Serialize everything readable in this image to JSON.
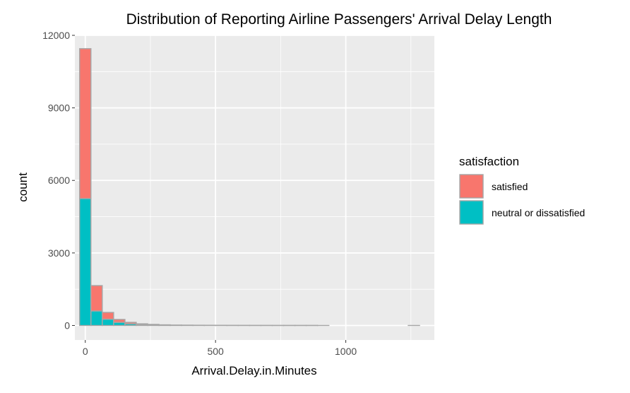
{
  "chart_data": {
    "type": "bar",
    "stacked": true,
    "histogram": true,
    "title": "Distribution of Reporting Airline Passengers' Arrival Delay Length",
    "xlabel": "Arrival.Delay.in.Minutes",
    "ylabel": "count",
    "xlim": [
      -40,
      1340
    ],
    "ylim": [
      -600,
      12000
    ],
    "x_ticks": [
      0,
      500,
      1000
    ],
    "y_ticks": [
      0,
      3000,
      6000,
      9000,
      12000
    ],
    "bin_width": 43.5,
    "bin_starts": [
      -21.75,
      21.75,
      65.25,
      108.75,
      152.25,
      195.75,
      239.25,
      282.75,
      326.25,
      369.75,
      413.25,
      456.75,
      500.25,
      543.75,
      587.25,
      630.75,
      674.25,
      717.75,
      761.25,
      804.75,
      848.25,
      891.75,
      935.25,
      978.75,
      1022.25,
      1065.75,
      1109.25,
      1152.75,
      1196.25,
      1239.75
    ],
    "series": [
      {
        "name": "neutral or dissatisfied",
        "color": "#00BFC4",
        "values": [
          5250,
          600,
          260,
          130,
          70,
          40,
          25,
          15,
          10,
          8,
          6,
          5,
          4,
          3,
          3,
          2,
          2,
          1,
          1,
          1,
          1,
          1,
          0,
          0,
          0,
          0,
          0,
          0,
          0,
          1
        ]
      },
      {
        "name": "satisfied",
        "color": "#F8766D",
        "values": [
          6200,
          1050,
          280,
          120,
          60,
          30,
          20,
          12,
          8,
          6,
          5,
          4,
          3,
          3,
          2,
          2,
          1,
          1,
          1,
          1,
          1,
          0,
          0,
          0,
          0,
          0,
          0,
          0,
          0,
          0
        ]
      }
    ],
    "legend": {
      "title": "satisfaction",
      "placement": "right",
      "entries": [
        {
          "label": "satisfied",
          "color": "#F8766D"
        },
        {
          "label": "neutral or dissatisfied",
          "color": "#00BFC4"
        }
      ]
    },
    "grid": true,
    "panel_background": "#EBEBEB",
    "grid_color": "#FFFFFF",
    "bar_outline": "#A6A6A6"
  }
}
